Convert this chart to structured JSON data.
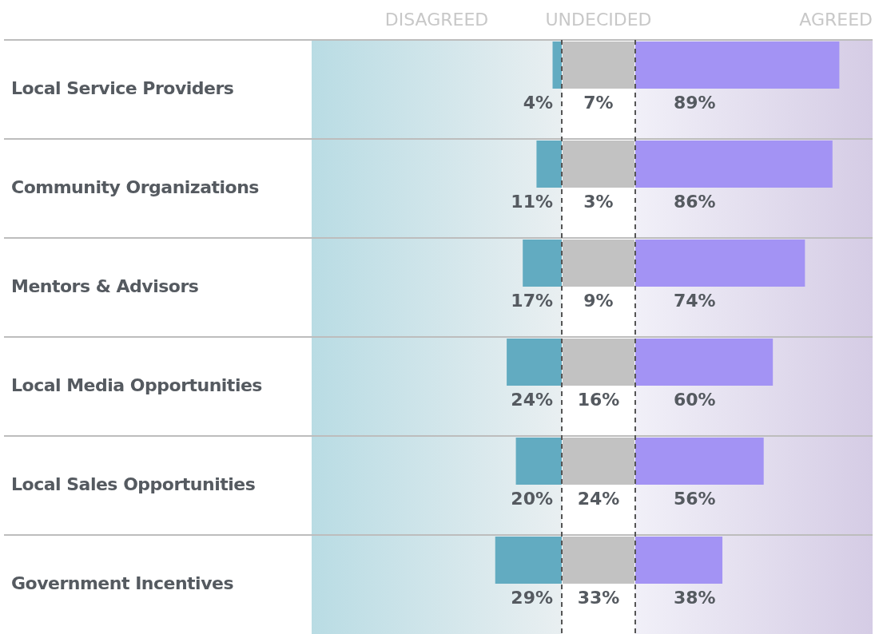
{
  "chart_data": [
    {
      "type": "bar",
      "orientation": "horizontal",
      "legend": "top",
      "xlim": [
        109,
        0
      ],
      "categories": [
        "Local Service Providers",
        "Community Organizations",
        "Mentors & Advisors",
        "Local Media Opportunities",
        "Local Sales Opportunities",
        "Government Incentives"
      ],
      "series": [
        {
          "name": "DISAGREED",
          "color": "#62abc1",
          "values": [
            4,
            11,
            17,
            24,
            20,
            29
          ],
          "value_labels": [
            "4%",
            "11%",
            "17%",
            "24%",
            "20%",
            "29%"
          ]
        }
      ]
    },
    {
      "type": "other",
      "title": "UNDECIDED",
      "categories": [
        null,
        null,
        null,
        null,
        null,
        null
      ],
      "color": "#c2c2c2",
      "value_labels": [
        "7%",
        "3%",
        "9%",
        "16%",
        "24%",
        "33%"
      ]
    },
    {
      "type": "bar",
      "orientation": "horizontal",
      "legend": "top",
      "xlim": [
        0,
        103.5
      ],
      "categories": [
        null,
        null,
        null,
        null,
        null,
        null
      ],
      "series": [
        {
          "name": "AGREED",
          "color": "#a393f4",
          "values": [
            89,
            86,
            74,
            60,
            56,
            38
          ],
          "value_labels": [
            "89%",
            "86%",
            "74%",
            "60%",
            "56%",
            "38%"
          ]
        }
      ]
    }
  ]
}
